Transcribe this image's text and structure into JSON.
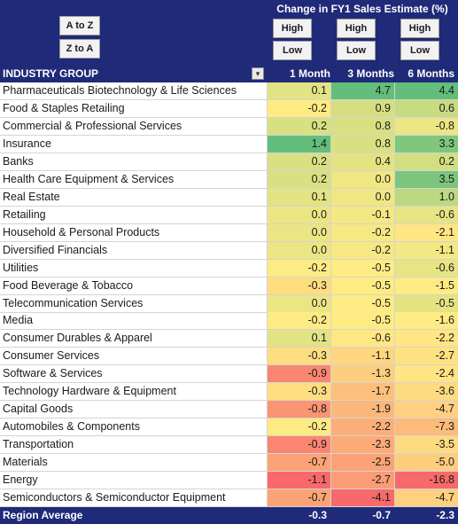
{
  "sort": {
    "asc_label": "A to Z",
    "desc_label": "Z to A"
  },
  "metric_title": "Change in FY1 Sales Estimate (%)",
  "high_label": "High",
  "low_label": "Low",
  "header": {
    "group": "INDUSTRY GROUP",
    "filter_icon": "dropdown-filter-icon",
    "col_1m": "1 Month",
    "col_3m": "3 Months",
    "col_6m": "6 Months"
  },
  "rows": [
    {
      "name": "Pharmaceuticals Biotechnology & Life Sciences",
      "m1": "0.1",
      "m3": "4.7",
      "m6": "4.4"
    },
    {
      "name": "Food & Staples Retailing",
      "m1": "-0.2",
      "m3": "0.9",
      "m6": "0.6"
    },
    {
      "name": "Commercial & Professional Services",
      "m1": "0.2",
      "m3": "0.8",
      "m6": "-0.8"
    },
    {
      "name": "Insurance",
      "m1": "1.4",
      "m3": "0.8",
      "m6": "3.3"
    },
    {
      "name": "Banks",
      "m1": "0.2",
      "m3": "0.4",
      "m6": "0.2"
    },
    {
      "name": "Health Care Equipment & Services",
      "m1": "0.2",
      "m3": "0.0",
      "m6": "3.5"
    },
    {
      "name": "Real Estate",
      "m1": "0.1",
      "m3": "0.0",
      "m6": "1.0"
    },
    {
      "name": "Retailing",
      "m1": "0.0",
      "m3": "-0.1",
      "m6": "-0.6"
    },
    {
      "name": "Household & Personal Products",
      "m1": "0.0",
      "m3": "-0.2",
      "m6": "-2.1"
    },
    {
      "name": "Diversified Financials",
      "m1": "0.0",
      "m3": "-0.2",
      "m6": "-1.1"
    },
    {
      "name": "Utilities",
      "m1": "-0.2",
      "m3": "-0.5",
      "m6": "-0.6"
    },
    {
      "name": "Food Beverage & Tobacco",
      "m1": "-0.3",
      "m3": "-0.5",
      "m6": "-1.5"
    },
    {
      "name": "Telecommunication Services",
      "m1": "0.0",
      "m3": "-0.5",
      "m6": "-0.5"
    },
    {
      "name": "Media",
      "m1": "-0.2",
      "m3": "-0.5",
      "m6": "-1.6"
    },
    {
      "name": "Consumer Durables & Apparel",
      "m1": "0.1",
      "m3": "-0.6",
      "m6": "-2.2"
    },
    {
      "name": "Consumer Services",
      "m1": "-0.3",
      "m3": "-1.1",
      "m6": "-2.7"
    },
    {
      "name": "Software & Services",
      "m1": "-0.9",
      "m3": "-1.3",
      "m6": "-2.4"
    },
    {
      "name": "Technology Hardware & Equipment",
      "m1": "-0.3",
      "m3": "-1.7",
      "m6": "-3.6"
    },
    {
      "name": "Capital Goods",
      "m1": "-0.8",
      "m3": "-1.9",
      "m6": "-4.7"
    },
    {
      "name": "Automobiles & Components",
      "m1": "-0.2",
      "m3": "-2.2",
      "m6": "-7.3"
    },
    {
      "name": "Transportation",
      "m1": "-0.9",
      "m3": "-2.3",
      "m6": "-3.5"
    },
    {
      "name": "Materials",
      "m1": "-0.7",
      "m3": "-2.5",
      "m6": "-5.0"
    },
    {
      "name": "Energy",
      "m1": "-1.1",
      "m3": "-2.7",
      "m6": "-16.8"
    },
    {
      "name": "Semiconductors & Semiconductor Equipment",
      "m1": "-0.7",
      "m3": "-4.1",
      "m6": "-4.7"
    }
  ],
  "average": {
    "name": "Region Average",
    "m1": "-0.3",
    "m3": "-0.7",
    "m6": "-2.3"
  },
  "colors": {
    "header_bg": "#1f2a78",
    "scale_low": "#f8696b",
    "scale_mid": "#ffeb84",
    "scale_high": "#63be7b"
  }
}
